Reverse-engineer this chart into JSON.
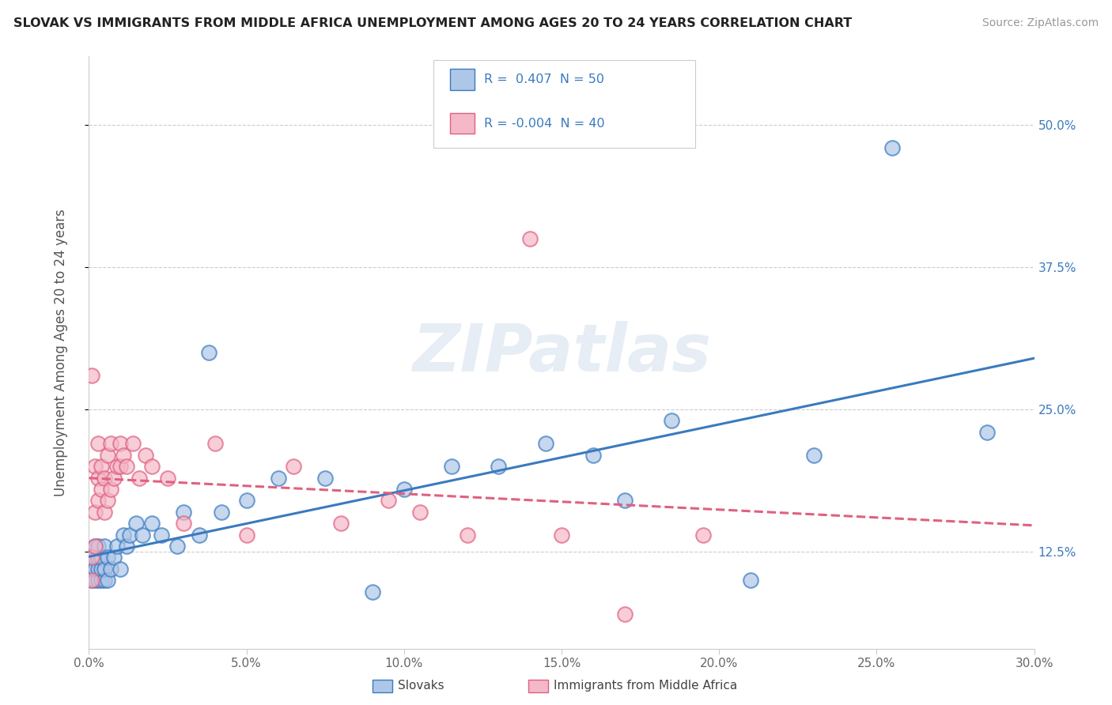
{
  "title": "SLOVAK VS IMMIGRANTS FROM MIDDLE AFRICA UNEMPLOYMENT AMONG AGES 20 TO 24 YEARS CORRELATION CHART",
  "source": "Source: ZipAtlas.com",
  "ylabel_label": "Unemployment Among Ages 20 to 24 years",
  "xlim": [
    0.0,
    0.3
  ],
  "ylim": [
    0.04,
    0.56
  ],
  "background_color": "#ffffff",
  "watermark": "ZIPatlas",
  "grid_color": "#cccccc",
  "slovak_color": "#aec6e8",
  "slovak_line_color": "#3a7abf",
  "immigrant_color": "#f4b8c8",
  "immigrant_line_color": "#e06080",
  "x_tick_vals": [
    0.0,
    0.05,
    0.1,
    0.15,
    0.2,
    0.25,
    0.3
  ],
  "x_tick_labels": [
    "0.0%",
    "5.0%",
    "10.0%",
    "15.0%",
    "20.0%",
    "25.0%",
    "30.0%"
  ],
  "y_tick_vals": [
    0.125,
    0.25,
    0.375,
    0.5
  ],
  "y_tick_labels": [
    "12.5%",
    "25.0%",
    "37.5%",
    "50.0%"
  ],
  "legend_r_slovak": "0.407",
  "legend_n_slovak": "50",
  "legend_r_immigrant": "-0.004",
  "legend_n_immigrant": "40",
  "slovak_x": [
    0.001,
    0.001,
    0.001,
    0.002,
    0.002,
    0.002,
    0.002,
    0.003,
    0.003,
    0.003,
    0.003,
    0.004,
    0.004,
    0.004,
    0.005,
    0.005,
    0.005,
    0.006,
    0.006,
    0.007,
    0.008,
    0.009,
    0.01,
    0.011,
    0.012,
    0.013,
    0.015,
    0.017,
    0.02,
    0.023,
    0.028,
    0.03,
    0.035,
    0.038,
    0.042,
    0.05,
    0.06,
    0.075,
    0.09,
    0.1,
    0.115,
    0.13,
    0.145,
    0.16,
    0.17,
    0.185,
    0.21,
    0.23,
    0.255,
    0.285
  ],
  "slovak_y": [
    0.1,
    0.11,
    0.12,
    0.1,
    0.11,
    0.12,
    0.13,
    0.1,
    0.11,
    0.12,
    0.13,
    0.1,
    0.11,
    0.12,
    0.1,
    0.11,
    0.13,
    0.1,
    0.12,
    0.11,
    0.12,
    0.13,
    0.11,
    0.14,
    0.13,
    0.14,
    0.15,
    0.14,
    0.15,
    0.14,
    0.13,
    0.16,
    0.14,
    0.3,
    0.16,
    0.17,
    0.19,
    0.19,
    0.09,
    0.18,
    0.2,
    0.2,
    0.22,
    0.21,
    0.17,
    0.24,
    0.1,
    0.21,
    0.48,
    0.23
  ],
  "immigrant_x": [
    0.001,
    0.001,
    0.001,
    0.002,
    0.002,
    0.002,
    0.003,
    0.003,
    0.003,
    0.004,
    0.004,
    0.005,
    0.005,
    0.006,
    0.006,
    0.007,
    0.007,
    0.008,
    0.009,
    0.01,
    0.01,
    0.011,
    0.012,
    0.014,
    0.016,
    0.018,
    0.02,
    0.025,
    0.03,
    0.04,
    0.05,
    0.065,
    0.08,
    0.095,
    0.105,
    0.12,
    0.14,
    0.15,
    0.17,
    0.195
  ],
  "immigrant_y": [
    0.1,
    0.12,
    0.28,
    0.13,
    0.16,
    0.2,
    0.17,
    0.19,
    0.22,
    0.18,
    0.2,
    0.16,
    0.19,
    0.17,
    0.21,
    0.18,
    0.22,
    0.19,
    0.2,
    0.2,
    0.22,
    0.21,
    0.2,
    0.22,
    0.19,
    0.21,
    0.2,
    0.19,
    0.15,
    0.22,
    0.14,
    0.2,
    0.15,
    0.17,
    0.16,
    0.14,
    0.4,
    0.14,
    0.07,
    0.14
  ]
}
